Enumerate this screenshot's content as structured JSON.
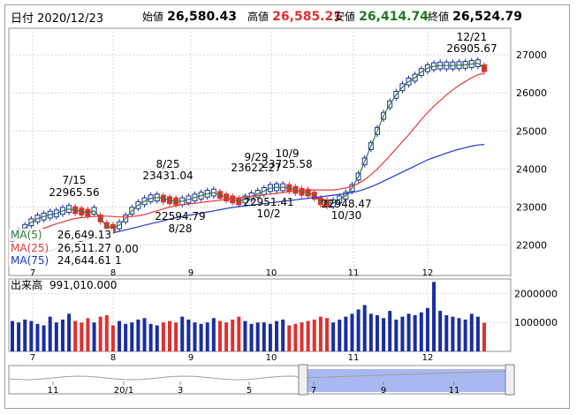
{
  "header": {
    "date_label": "日付",
    "date": "2020/12/23",
    "open_label": "始値",
    "open": "26,580.43",
    "high_label": "高値",
    "high": "26,585.21",
    "low_label": "安値",
    "low": "26,414.74",
    "close_label": "終値",
    "close": "26,524.79"
  },
  "colors": {
    "up": "#1a2ea0",
    "down": "#e03030",
    "ma5": "#2e7d32",
    "ma25": "#e53935",
    "ma75": "#1e3ad0",
    "volume_up": "#1a2ea0",
    "volume_down": "#e03030",
    "nav_fill": "#a9b8f0"
  },
  "legend": {
    "ma5": {
      "label": "MA(5)",
      "value": "26,649.13"
    },
    "ma25": {
      "label": "MA(25)",
      "value": "26,511.27"
    },
    "ma75": {
      "label": "MA(75)",
      "value": "24,644.61"
    }
  },
  "volume_panel": {
    "label": "出来高",
    "value": "991,010.000"
  },
  "chart_data": [
    {
      "type": "line",
      "name": "price",
      "chart_kind": "candlestick",
      "x_ticks": [
        "7",
        "8",
        "9",
        "10",
        "11",
        "12"
      ],
      "y_ticks": [
        "27000",
        "26000",
        "25000",
        "24000",
        "23000",
        "22000"
      ],
      "ylim": [
        21200,
        27700
      ],
      "annotations": [
        {
          "date": "7/15",
          "value": "22965.56"
        },
        {
          "date": "8/25",
          "value": "23431.04"
        },
        {
          "date": "8/28",
          "value": "22594.79"
        },
        {
          "date": "9/29",
          "value": "23622.27"
        },
        {
          "date": "10/2",
          "value": "22951.41"
        },
        {
          "date": "10/9",
          "value": "23725.58"
        },
        {
          "date": "10/30",
          "value": "22948.47"
        },
        {
          "date": "12/21",
          "value": "26905.67"
        }
      ],
      "extra_labels": [
        "0.00",
        "1"
      ],
      "series": [
        {
          "name": "MA(5)",
          "values": [
            22200,
            22300,
            22450,
            22600,
            22700,
            22750,
            22800,
            22830,
            22900,
            22950,
            22920,
            22880,
            22850,
            22900,
            22700,
            22500,
            22450,
            22520,
            22700,
            22900,
            23050,
            23150,
            23230,
            23250,
            23220,
            23180,
            23150,
            23150,
            23200,
            23250,
            23300,
            23350,
            23380,
            23320,
            23250,
            23200,
            23150,
            23200,
            23280,
            23350,
            23420,
            23500,
            23520,
            23520,
            23500,
            23450,
            23400,
            23380,
            23300,
            23150,
            23100,
            23100,
            23200,
            23300,
            23500,
            23800,
            24200,
            24600,
            25000,
            25400,
            25700,
            25950,
            26150,
            26300,
            26400,
            26550,
            26650,
            26700,
            26720,
            26720,
            26720,
            26730,
            26740,
            26760,
            26780,
            26650
          ]
        },
        {
          "name": "MA(25)",
          "values": [
            22150,
            22200,
            22260,
            22320,
            22380,
            22440,
            22500,
            22560,
            22610,
            22660,
            22700,
            22720,
            22740,
            22750,
            22760,
            22760,
            22750,
            22740,
            22740,
            22750,
            22770,
            22800,
            22850,
            22900,
            22950,
            23000,
            23030,
            23060,
            23080,
            23100,
            23120,
            23140,
            23160,
            23180,
            23200,
            23220,
            23240,
            23260,
            23280,
            23300,
            23320,
            23340,
            23360,
            23380,
            23400,
            23420,
            23430,
            23440,
            23450,
            23450,
            23450,
            23450,
            23470,
            23500,
            23550,
            23620,
            23720,
            23850,
            24000,
            24170,
            24350,
            24530,
            24720,
            24900,
            25100,
            25300,
            25480,
            25650,
            25800,
            25950,
            26080,
            26200,
            26300,
            26400,
            26480,
            26511
          ]
        },
        {
          "name": "MA(75)",
          "values": [
            21550,
            21600,
            21650,
            21700,
            21750,
            21800,
            21850,
            21900,
            21950,
            22000,
            22050,
            22100,
            22150,
            22200,
            22240,
            22280,
            22320,
            22360,
            22400,
            22440,
            22480,
            22520,
            22560,
            22600,
            22640,
            22680,
            22720,
            22750,
            22780,
            22810,
            22840,
            22870,
            22900,
            22930,
            22960,
            22990,
            23010,
            23030,
            23050,
            23070,
            23090,
            23110,
            23130,
            23150,
            23170,
            23190,
            23210,
            23230,
            23250,
            23270,
            23290,
            23310,
            23330,
            23350,
            23380,
            23420,
            23470,
            23530,
            23600,
            23680,
            23760,
            23840,
            23920,
            24000,
            24080,
            24160,
            24240,
            24300,
            24360,
            24420,
            24470,
            24520,
            24560,
            24600,
            24630,
            24645
          ]
        }
      ]
    },
    {
      "type": "bar",
      "name": "volume",
      "y_ticks": [
        "2000000",
        "1000000"
      ],
      "ylim": [
        0,
        2500000
      ],
      "values": [
        1050000,
        1000000,
        1100000,
        1050000,
        950000,
        900000,
        1200000,
        1000000,
        1100000,
        1300000,
        1050000,
        1000000,
        1150000,
        1000000,
        1200000,
        1250000,
        900000,
        1050000,
        950000,
        1000000,
        1100000,
        1150000,
        950000,
        900000,
        1000000,
        1050000,
        1000000,
        1200000,
        1100000,
        1000000,
        950000,
        1000000,
        1150000,
        1050000,
        1000000,
        1100000,
        1200000,
        1050000,
        950000,
        1000000,
        1000000,
        950000,
        1050000,
        1100000,
        900000,
        950000,
        1000000,
        1050000,
        1100000,
        1200000,
        1150000,
        1000000,
        1100000,
        1200000,
        1300000,
        1450000,
        1600000,
        1300000,
        1250000,
        1150000,
        1400000,
        1100000,
        1200000,
        1300000,
        1250000,
        1350000,
        1500000,
        2400000,
        1400000,
        1250000,
        1200000,
        1150000,
        1100000,
        1300000,
        1200000,
        990000
      ],
      "x_ticks": [
        "7",
        "8",
        "9",
        "10",
        "11",
        "12"
      ]
    }
  ],
  "navigator": {
    "x_ticks": [
      "11",
      "20/1",
      "3",
      "5",
      "7",
      "9",
      "11"
    ]
  }
}
